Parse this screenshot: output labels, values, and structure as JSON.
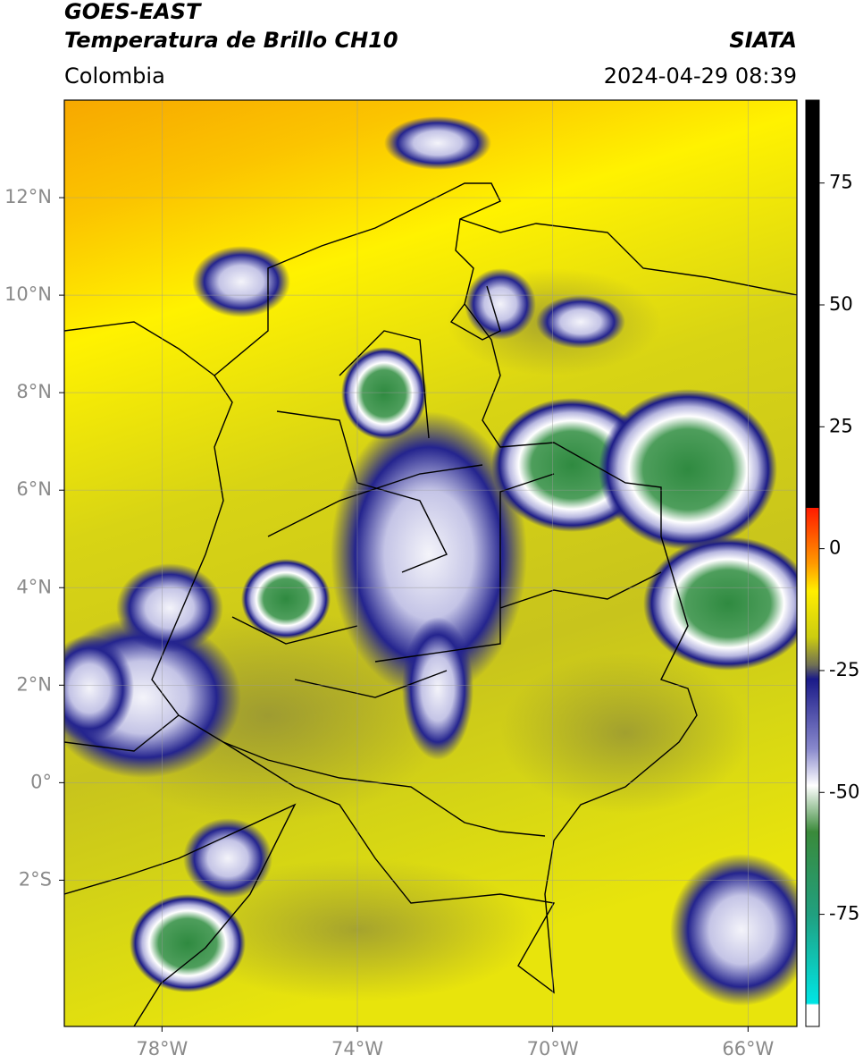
{
  "header": {
    "title": "GOES-EAST",
    "subtitle": "Temperatura de Brillo CH10",
    "source": "SIATA",
    "region": "Colombia",
    "timestamp": "2024-04-29 08:39"
  },
  "map": {
    "xlim": [
      -80,
      -65
    ],
    "ylim": [
      -5,
      14
    ],
    "grid": true,
    "xticks": [
      {
        "value": -78,
        "label": "78°W"
      },
      {
        "value": -74,
        "label": "74°W"
      },
      {
        "value": -70,
        "label": "70°W"
      },
      {
        "value": -66,
        "label": "66°W"
      }
    ],
    "yticks": [
      {
        "value": 12,
        "label": "12°N"
      },
      {
        "value": 10,
        "label": "10°N"
      },
      {
        "value": 8,
        "label": "8°N"
      },
      {
        "value": 6,
        "label": "6°N"
      },
      {
        "value": 4,
        "label": "4°N"
      },
      {
        "value": 2,
        "label": "2°N"
      },
      {
        "value": 0,
        "label": "0°"
      },
      {
        "value": -2,
        "label": "2°S"
      }
    ]
  },
  "colorbar": {
    "lim": [
      -98,
      92
    ],
    "ticks": [
      75,
      50,
      25,
      0,
      -25,
      -50,
      -75
    ]
  }
}
